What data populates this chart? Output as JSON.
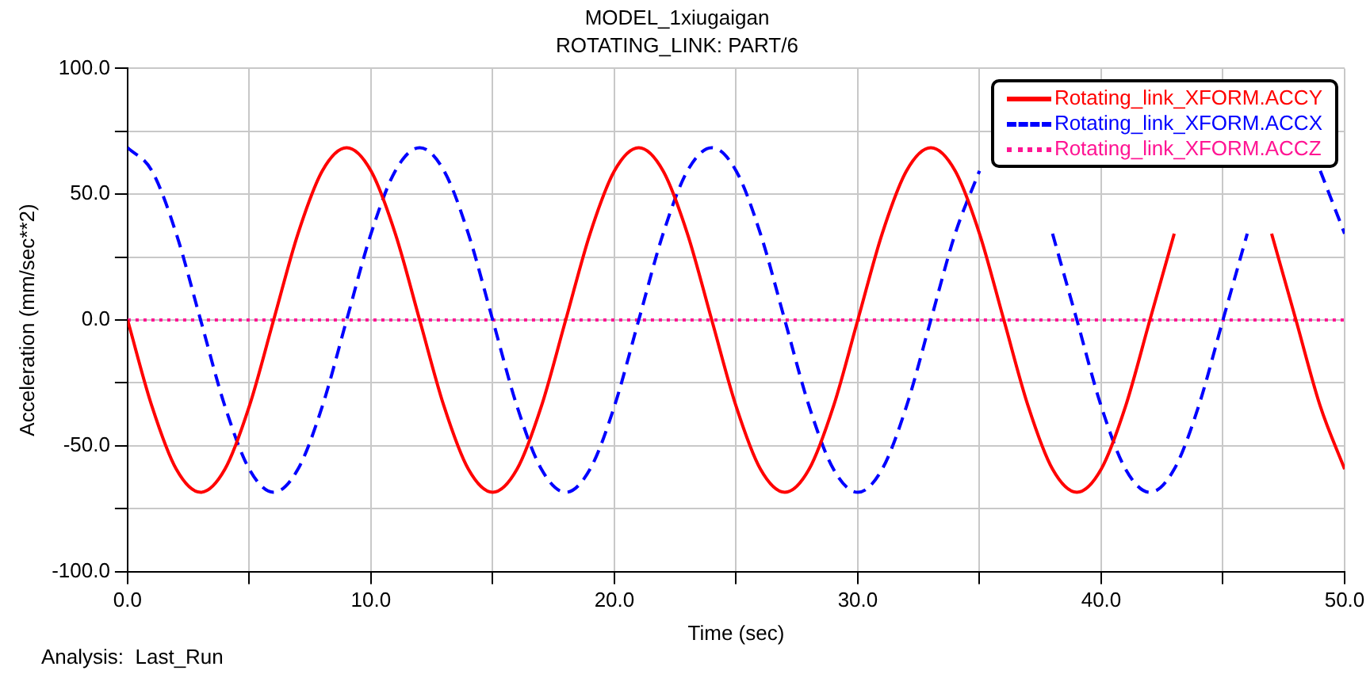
{
  "chart_data": {
    "type": "line",
    "title": "MODEL_1xiugaigan",
    "subtitle": "ROTATING_LINK: PART/6",
    "xlabel": "Time (sec)",
    "ylabel": "Acceleration (mm/sec**2)",
    "annotations": [
      "Analysis:  Last_Run"
    ],
    "x": [
      0,
      1,
      2,
      3,
      4,
      5,
      6,
      7,
      8,
      9,
      10,
      11,
      12,
      13,
      14,
      15,
      16,
      17,
      18,
      19,
      20,
      21,
      22,
      23,
      24,
      25,
      26,
      27,
      28,
      29,
      30,
      31,
      32,
      33,
      34,
      35,
      36,
      37,
      38,
      39,
      40,
      41,
      42,
      43,
      44,
      45,
      46,
      47,
      48,
      49,
      50
    ],
    "series": [
      {
        "name": "Rotating_link_XFORM.ACCY",
        "color": "#ff0000",
        "line_style": "solid",
        "values": [
          0,
          -34.3,
          -59.3,
          -68.5,
          -59.3,
          -34.3,
          0,
          34.3,
          59.3,
          68.5,
          59.3,
          34.3,
          0,
          -34.3,
          -59.3,
          -68.5,
          -59.3,
          -34.3,
          0,
          34.3,
          59.3,
          68.5,
          59.3,
          34.3,
          0,
          -34.3,
          -59.3,
          -68.5,
          -59.3,
          -34.3,
          0,
          34.3,
          59.3,
          68.5,
          59.3,
          34.3,
          0,
          -34.3,
          -59.3,
          -68.5,
          -59.3,
          -34.3,
          0,
          34.3,
          null,
          null,
          null,
          34.3,
          0,
          -34.3,
          -59.3
        ]
      },
      {
        "name": "Rotating_link_XFORM.ACCX",
        "color": "#0000ff",
        "line_style": "dashed",
        "values": [
          68.5,
          59.3,
          34.3,
          0,
          -34.3,
          -59.3,
          -68.5,
          -59.3,
          -34.3,
          0,
          34.3,
          59.3,
          68.5,
          59.3,
          34.3,
          0,
          -34.3,
          -59.3,
          -68.5,
          -59.3,
          -34.3,
          0,
          34.3,
          59.3,
          68.5,
          59.3,
          34.3,
          0,
          -34.3,
          -59.3,
          -68.5,
          -59.3,
          -34.3,
          0,
          34.3,
          59.3,
          null,
          null,
          34.3,
          0,
          -34.3,
          -59.3,
          -68.5,
          -59.3,
          -34.3,
          0,
          34.3,
          null,
          null,
          59.3,
          34.3
        ]
      },
      {
        "name": "Rotating_link_XFORM.ACCZ",
        "color": "#ff1493",
        "line_style": "dotted",
        "values": [
          0,
          0,
          0,
          0,
          0,
          0,
          0,
          0,
          0,
          0,
          0,
          0,
          0,
          0,
          0,
          0,
          0,
          0,
          0,
          0,
          0,
          0,
          0,
          0,
          0,
          0,
          0,
          0,
          0,
          0,
          0,
          0,
          0,
          0,
          0,
          0,
          0,
          0,
          0,
          0,
          0,
          0,
          0,
          0,
          0,
          0,
          0,
          0,
          0,
          0,
          0
        ]
      }
    ],
    "xlim": [
      0,
      50
    ],
    "xticks": [
      {
        "value": 0,
        "label": "0.0"
      },
      {
        "value": 5,
        "label": null
      },
      {
        "value": 10,
        "label": "10.0"
      },
      {
        "value": 15,
        "label": null
      },
      {
        "value": 20,
        "label": "20.0"
      },
      {
        "value": 25,
        "label": null
      },
      {
        "value": 30,
        "label": "30.0"
      },
      {
        "value": 35,
        "label": null
      },
      {
        "value": 40,
        "label": "40.0"
      },
      {
        "value": 45,
        "label": null
      },
      {
        "value": 50,
        "label": "50.0"
      }
    ],
    "ylim": [
      -100,
      100
    ],
    "yticks": [
      {
        "value": -100,
        "label": "-100.0"
      },
      {
        "value": -75,
        "label": null
      },
      {
        "value": -50,
        "label": "-50.0"
      },
      {
        "value": -25,
        "label": null
      },
      {
        "value": 0,
        "label": "0.0"
      },
      {
        "value": 25,
        "label": null
      },
      {
        "value": 50,
        "label": "50.0"
      },
      {
        "value": 75,
        "label": null
      },
      {
        "value": 100,
        "label": "100.0"
      }
    ],
    "grid": true,
    "legend": "top right"
  }
}
